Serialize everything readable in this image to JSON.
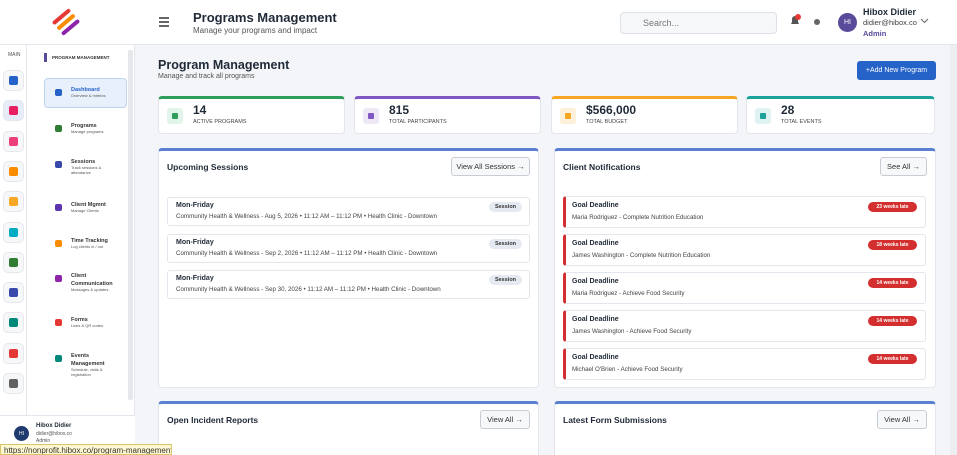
{
  "header": {
    "title": "Programs Management",
    "subtitle": "Manage your programs and impact",
    "search_placeholder": "Search...",
    "user": {
      "initials": "HI",
      "name": "Hibox Didier",
      "email": "didier@hibox.co",
      "role": "Admin"
    }
  },
  "sidebar": {
    "section": "MAIN",
    "group": "PROGRAM MANAGEMENT",
    "items": [
      {
        "title": "Dashboard",
        "subtitle": "Overview & metrics"
      },
      {
        "title": "Programs",
        "subtitle": "Manage programs"
      },
      {
        "title": "Sessions",
        "subtitle": "Track sessions & attendance"
      },
      {
        "title": "Client Mgmnt",
        "subtitle": "Manage Clients"
      },
      {
        "title": "Time Tracking",
        "subtitle": "Log clients in / out"
      },
      {
        "title": "Client Communication",
        "subtitle": "Messages & updates"
      },
      {
        "title": "Forms",
        "subtitle": "Links & QR codes"
      },
      {
        "title": "Events Management",
        "subtitle": "Schedule, visits & registration"
      }
    ],
    "user": {
      "initials": "HI",
      "name": "Hibox Didier",
      "email": "didier@hibox.co",
      "role": "Admin"
    }
  },
  "page": {
    "title": "Program Management",
    "subtitle": "Manage and track all programs",
    "add_button": "+Add New Program",
    "stats": [
      {
        "value": "14",
        "label": "ACTIVE PROGRAMS"
      },
      {
        "value": "815",
        "label": "TOTAL PARTICIPANTS"
      },
      {
        "value": "$566,000",
        "label": "TOTAL BUDGET"
      },
      {
        "value": "28",
        "label": "TOTAL EVENTS"
      }
    ],
    "sessions": {
      "title": "Upcoming Sessions",
      "link": "View All Sessions →",
      "items": [
        {
          "title": "Mon-Friday",
          "detail": "Community Health & Wellness - Aug 5, 2026 • 11:12 AM – 11:12 PM • Health Clinic - Downtown",
          "badge": "Session"
        },
        {
          "title": "Mon-Friday",
          "detail": "Community Health & Wellness - Sep 2, 2026 • 11:12 AM – 11:12 PM • Health Clinic - Downtown",
          "badge": "Session"
        },
        {
          "title": "Mon-Friday",
          "detail": "Community Health & Wellness - Sep 30, 2026 • 11:12 AM – 11:12 PM • Health Clinic - Downtown",
          "badge": "Session"
        }
      ]
    },
    "notifications": {
      "title": "Client Notifications",
      "link": "See All →",
      "items": [
        {
          "title": "Goal Deadline",
          "detail": "Maria Rodriguez - Complete Nutrition Education",
          "badge": "23 weeks late"
        },
        {
          "title": "Goal Deadline",
          "detail": "James Washington - Complete Nutrition Education",
          "badge": "18 weeks late"
        },
        {
          "title": "Goal Deadline",
          "detail": "Maria Rodriguez - Achieve Food Security",
          "badge": "14 weeks late"
        },
        {
          "title": "Goal Deadline",
          "detail": "James Washington - Achieve Food Security",
          "badge": "14 weeks late"
        },
        {
          "title": "Goal Deadline",
          "detail": "Michael O'Brien - Achieve Food Security",
          "badge": "14 weeks late"
        }
      ]
    },
    "incidents": {
      "title": "Open Incident Reports",
      "link": "View All →"
    },
    "forms": {
      "title": "Latest Form Submissions",
      "link": "View All →"
    }
  },
  "status_bar": {
    "url": "https://nonprofit.hibox.co/program-management"
  }
}
